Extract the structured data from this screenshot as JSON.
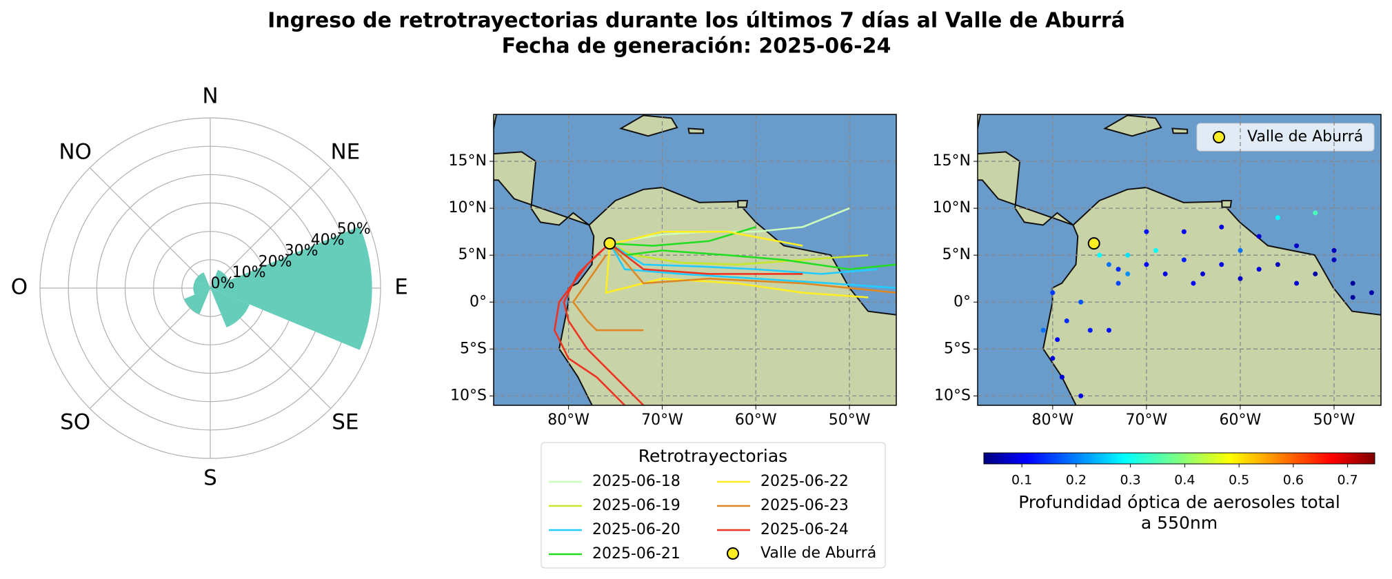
{
  "title": [
    "Ingreso de retrotrayectorias durante los últimos 7 días al Valle de Aburrá",
    "Fecha de generación: 2025-06-24"
  ],
  "chart_data": [
    {
      "type": "polar-bar",
      "categories": [
        "N",
        "NE",
        "E",
        "SE",
        "S",
        "SO",
        "O",
        "NO"
      ],
      "values": [
        0,
        7,
        57,
        15,
        0,
        10,
        6,
        6
      ],
      "color": "#66cdbb",
      "rlim": [
        0,
        60
      ],
      "rticks": [
        {
          "value": 0,
          "label": "0%"
        },
        {
          "value": 10,
          "label": "10%"
        },
        {
          "value": 20,
          "label": "20%"
        },
        {
          "value": 30,
          "label": "30%"
        },
        {
          "value": 40,
          "label": "40%"
        },
        {
          "value": 50,
          "label": "50%"
        }
      ]
    },
    {
      "type": "map-lines",
      "xlim": [
        -88,
        -45
      ],
      "ylim": [
        -11,
        20
      ],
      "xticks": [
        {
          "value": -80,
          "label": "80°W"
        },
        {
          "value": -70,
          "label": "70°W"
        },
        {
          "value": -60,
          "label": "60°W"
        },
        {
          "value": -50,
          "label": "50°W"
        }
      ],
      "yticks": [
        {
          "value": -10,
          "label": "10°S"
        },
        {
          "value": -5,
          "label": "5°S"
        },
        {
          "value": 0,
          "label": "0°"
        },
        {
          "value": 5,
          "label": "5°N"
        },
        {
          "value": 10,
          "label": "10°N"
        },
        {
          "value": 15,
          "label": "15°N"
        }
      ],
      "legend_title": "Retrotrayectorias",
      "series": [
        {
          "name": "2025-06-18",
          "color": "#ccffbb",
          "x": [
            -50,
            -55,
            -60,
            -65,
            -70,
            -75.6
          ],
          "y": [
            10,
            8,
            7.5,
            7.5,
            7.2,
            6.25
          ]
        },
        {
          "name": "2025-06-19",
          "color": "#c8e62a",
          "x": [
            -48,
            -55,
            -62,
            -68,
            -73,
            -75.6
          ],
          "y": [
            5,
            4.5,
            4,
            4.2,
            5,
            6.25
          ]
        },
        {
          "name": "2025-06-20",
          "color": "#22ccff",
          "x": [
            -47,
            -53,
            -60,
            -66,
            -72,
            -75.6,
            null,
            -45,
            -52,
            -60,
            -68,
            -74,
            -75.6
          ],
          "y": [
            3.5,
            3,
            3.5,
            3.8,
            4,
            6.25,
            null,
            1.5,
            2,
            2.5,
            3,
            3.5,
            6.25
          ]
        },
        {
          "name": "2025-06-21",
          "color": "#22dd22",
          "x": [
            -45,
            -50,
            -57,
            -63,
            -70,
            -74,
            -75.6,
            null,
            -60,
            -65,
            -71,
            -75.6
          ],
          "y": [
            4,
            3.5,
            4.5,
            5,
            5.5,
            5,
            6.25,
            null,
            8,
            6.5,
            6,
            6.25
          ]
        },
        {
          "name": "2025-06-22",
          "color": "#ffee22",
          "x": [
            -48,
            -55,
            -62,
            -70,
            -76,
            -75.6,
            null,
            -55,
            -63,
            -70,
            -74,
            -75.6
          ],
          "y": [
            0.5,
            1,
            2,
            2.5,
            1,
            6.25,
            null,
            6,
            7.5,
            7.5,
            6.5,
            6.25
          ]
        },
        {
          "name": "2025-06-23",
          "color": "#dd8822",
          "x": [
            -45,
            -55,
            -65,
            -72,
            -75.6,
            null,
            -72,
            -75,
            -77,
            -78,
            -79.5,
            -76
          ],
          "y": [
            1,
            2,
            2.5,
            2,
            6.25,
            null,
            -3,
            -3,
            -3,
            -2,
            0,
            5
          ]
        },
        {
          "name": "2025-06-24",
          "color": "#ee3322",
          "x": [
            -72,
            -75,
            -78,
            -80,
            -80.5,
            -79,
            -77,
            -75.6,
            null,
            -74,
            -77,
            -80,
            -81.5,
            -81,
            -78,
            -75.6,
            null,
            -55,
            -65,
            -72,
            -75.6
          ],
          "y": [
            -11,
            -8,
            -5,
            -2,
            0,
            3,
            5,
            6.25,
            null,
            -11,
            -8,
            -6,
            -3,
            0,
            4,
            6.25,
            null,
            3,
            3,
            3.5,
            6.25
          ]
        }
      ],
      "site": {
        "name": "Valle de Aburrá",
        "color": "#ffee22",
        "x": -75.6,
        "y": 6.25
      }
    },
    {
      "type": "map-scatter",
      "xlim": [
        -88,
        -45
      ],
      "ylim": [
        -11,
        20
      ],
      "xticks": [
        {
          "value": -80,
          "label": "80°W"
        },
        {
          "value": -70,
          "label": "70°W"
        },
        {
          "value": -60,
          "label": "60°W"
        },
        {
          "value": -50,
          "label": "50°W"
        }
      ],
      "yticks": [
        {
          "value": -10,
          "label": "10°S"
        },
        {
          "value": -5,
          "label": "5°S"
        },
        {
          "value": 0,
          "label": "0°"
        },
        {
          "value": 5,
          "label": "5°N"
        },
        {
          "value": 10,
          "label": "10°N"
        },
        {
          "value": 15,
          "label": "15°N"
        }
      ],
      "colormap": "jet",
      "clim": [
        0.03,
        0.75
      ],
      "cticks": [
        0.1,
        0.2,
        0.3,
        0.4,
        0.5,
        0.6,
        0.7
      ],
      "colorbar_label": [
        "Profundidad óptica de aerosoles total",
        "a 550nm"
      ],
      "x": [
        -75.6,
        -75,
        -74,
        -73,
        -72,
        -70,
        -68,
        -66,
        -64,
        -62,
        -60,
        -58,
        -56,
        -54,
        -52,
        -50,
        -48,
        -46,
        -70,
        -66,
        -62,
        -58,
        -54,
        -50,
        -56,
        -52,
        -77,
        -78.5,
        -79.5,
        -80,
        -79,
        -77,
        -81,
        -80,
        -76,
        -74,
        -72,
        -69,
        -73,
        -65,
        -60,
        -48
      ],
      "y": [
        6,
        5,
        4,
        3.5,
        3,
        4,
        3,
        4.5,
        3,
        4,
        2.5,
        3.5,
        4,
        2,
        3,
        4.5,
        2,
        1,
        7.5,
        7.5,
        8,
        7,
        6,
        5.5,
        9,
        9.5,
        0,
        -2,
        -4,
        -6,
        -8,
        -10,
        -3,
        1,
        -3,
        -3,
        5,
        5.5,
        2,
        2,
        5.5,
        0.5
      ],
      "values": [
        0.25,
        0.3,
        0.2,
        0.15,
        0.22,
        0.12,
        0.1,
        0.14,
        0.09,
        0.11,
        0.08,
        0.1,
        0.07,
        0.09,
        0.06,
        0.07,
        0.05,
        0.06,
        0.13,
        0.11,
        0.1,
        0.09,
        0.08,
        0.07,
        0.3,
        0.35,
        0.18,
        0.15,
        0.12,
        0.1,
        0.09,
        0.1,
        0.2,
        0.16,
        0.14,
        0.13,
        0.28,
        0.3,
        0.17,
        0.12,
        0.2,
        0.05
      ],
      "site": {
        "name": "Valle de Aburrá",
        "color": "#ffee22",
        "x": -75.6,
        "y": 6.25
      }
    }
  ]
}
